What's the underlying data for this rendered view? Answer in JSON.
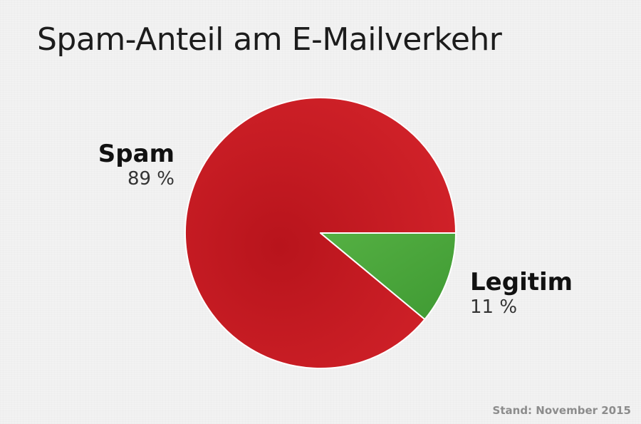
{
  "chart_data": {
    "type": "pie",
    "title": "Spam-Anteil am E-Mailverkehr",
    "slices": [
      {
        "label": "Spam",
        "value": 89,
        "value_label": "89 %",
        "color": "#cc2229"
      },
      {
        "label": "Legitim",
        "value": 11,
        "value_label": "11 %",
        "color": "#4aa639"
      }
    ],
    "footnote": "Stand: November 2015"
  },
  "colors": {
    "background": "#f2f2f2",
    "slice_border": "#ffffff"
  }
}
